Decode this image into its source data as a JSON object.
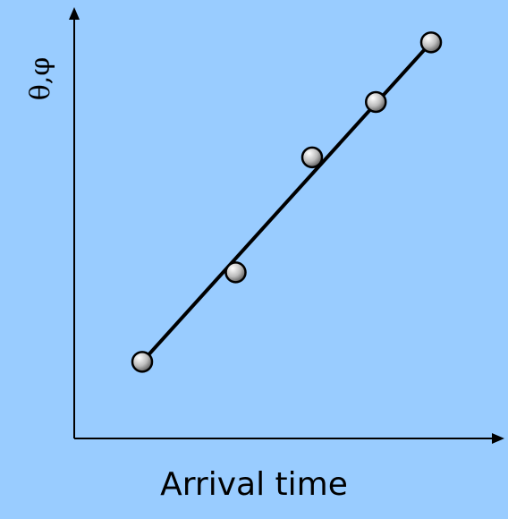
{
  "chart_data": {
    "type": "scatter",
    "title": "",
    "xlabel": "Arrival time",
    "ylabel": "θ,φ",
    "xlim": [
      0,
      10
    ],
    "ylim": [
      0,
      10
    ],
    "grid": false,
    "ticks": false,
    "series": [
      {
        "kind": "points",
        "points": [
          {
            "x": 1.6,
            "y": 1.8
          },
          {
            "x": 3.8,
            "y": 3.9
          },
          {
            "x": 5.6,
            "y": 6.6
          },
          {
            "x": 7.1,
            "y": 7.9
          },
          {
            "x": 8.4,
            "y": 9.3
          }
        ]
      },
      {
        "kind": "fit-line",
        "points": [
          {
            "x": 1.6,
            "y": 1.8
          },
          {
            "x": 8.4,
            "y": 9.3
          }
        ]
      }
    ]
  },
  "colors": {
    "background": "#99ccff",
    "axis": "#000000",
    "line": "#000000",
    "marker_light": "#ffffff",
    "marker_dark": "#555555"
  }
}
